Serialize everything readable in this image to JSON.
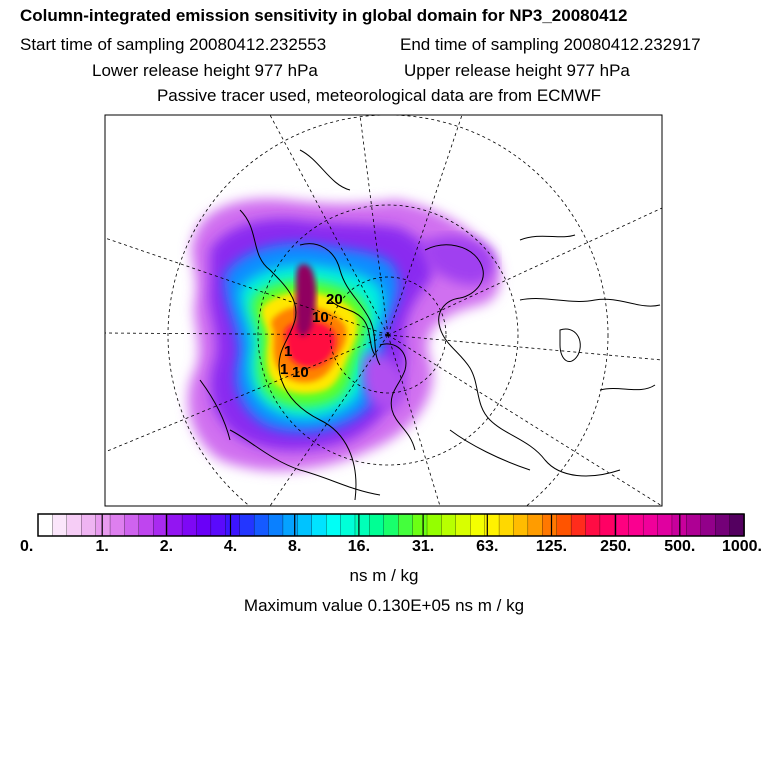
{
  "header": {
    "title": "Column-integrated emission sensitivity in global domain for NP3_20080412",
    "start_time": "Start time of sampling 20080412.232553",
    "end_time": "End time of sampling 20080412.232917",
    "lower_height": "Lower release height  977 hPa",
    "upper_height": "Upper release height  977 hPa",
    "tracer_note": "Passive tracer used, meteorological data are from ECMWF"
  },
  "map": {
    "labels": [
      "20",
      "10",
      "1",
      "1",
      "10"
    ]
  },
  "colorbar": {
    "ticks": [
      "0.",
      "1.",
      "2.",
      "4.",
      "8.",
      "16.",
      "31.",
      "63.",
      "125.",
      "250.",
      "500.",
      "1000."
    ],
    "colors": [
      "#ffffff",
      "#fbe6fb",
      "#f6cdf6",
      "#efb4f2",
      "#e89aef",
      "#de7fef",
      "#cf63ef",
      "#bf45ef",
      "#a92af0",
      "#9315f2",
      "#7e08f5",
      "#6a00f8",
      "#5a0afc",
      "#3c14ff",
      "#2336ff",
      "#155aff",
      "#0a80ff",
      "#05a2ff",
      "#00c3ff",
      "#00e3ff",
      "#00fff6",
      "#00ffd8",
      "#00ffb8",
      "#00ff94",
      "#18ff6c",
      "#44ff3c",
      "#6cff14",
      "#94ff00",
      "#b8ff00",
      "#d8ff00",
      "#f4ff00",
      "#fff200",
      "#ffd800",
      "#ffbc00",
      "#ff9c00",
      "#ff7800",
      "#ff5400",
      "#ff2c1c",
      "#ff0c44",
      "#ff0064",
      "#ff0080",
      "#fa0090",
      "#f0009a",
      "#e000a0",
      "#c8009c",
      "#ae0094",
      "#92008a",
      "#740078",
      "#540060"
    ],
    "units": "ns m / kg",
    "max_value": "Maximum value  0.130E+05 ns m / kg"
  }
}
